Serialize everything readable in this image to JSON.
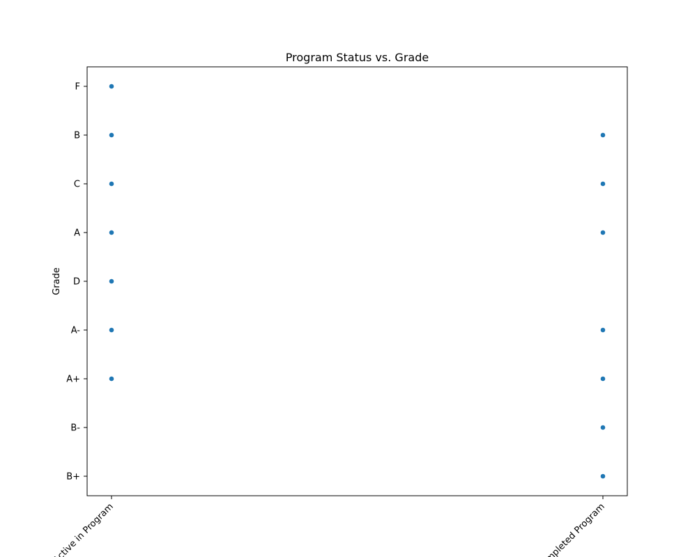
{
  "chart_data": {
    "type": "scatter",
    "title": "Program Status vs. Grade",
    "xlabel": "",
    "ylabel": "Grade",
    "x_categories": [
      "Active in Program",
      "Completed Program"
    ],
    "y_categories": [
      "B+",
      "B-",
      "A+",
      "A-",
      "D",
      "A",
      "C",
      "B",
      "F"
    ],
    "points": [
      {
        "x": "Active in Program",
        "y": "F"
      },
      {
        "x": "Active in Program",
        "y": "B"
      },
      {
        "x": "Active in Program",
        "y": "C"
      },
      {
        "x": "Active in Program",
        "y": "A"
      },
      {
        "x": "Active in Program",
        "y": "D"
      },
      {
        "x": "Active in Program",
        "y": "A-"
      },
      {
        "x": "Active in Program",
        "y": "A+"
      },
      {
        "x": "Completed Program",
        "y": "B"
      },
      {
        "x": "Completed Program",
        "y": "C"
      },
      {
        "x": "Completed Program",
        "y": "A"
      },
      {
        "x": "Completed Program",
        "y": "A-"
      },
      {
        "x": "Completed Program",
        "y": "A+"
      },
      {
        "x": "Completed Program",
        "y": "B-"
      },
      {
        "x": "Completed Program",
        "y": "B+"
      }
    ],
    "marker_color": "#1f77b4",
    "grid": false,
    "legend": "none"
  }
}
